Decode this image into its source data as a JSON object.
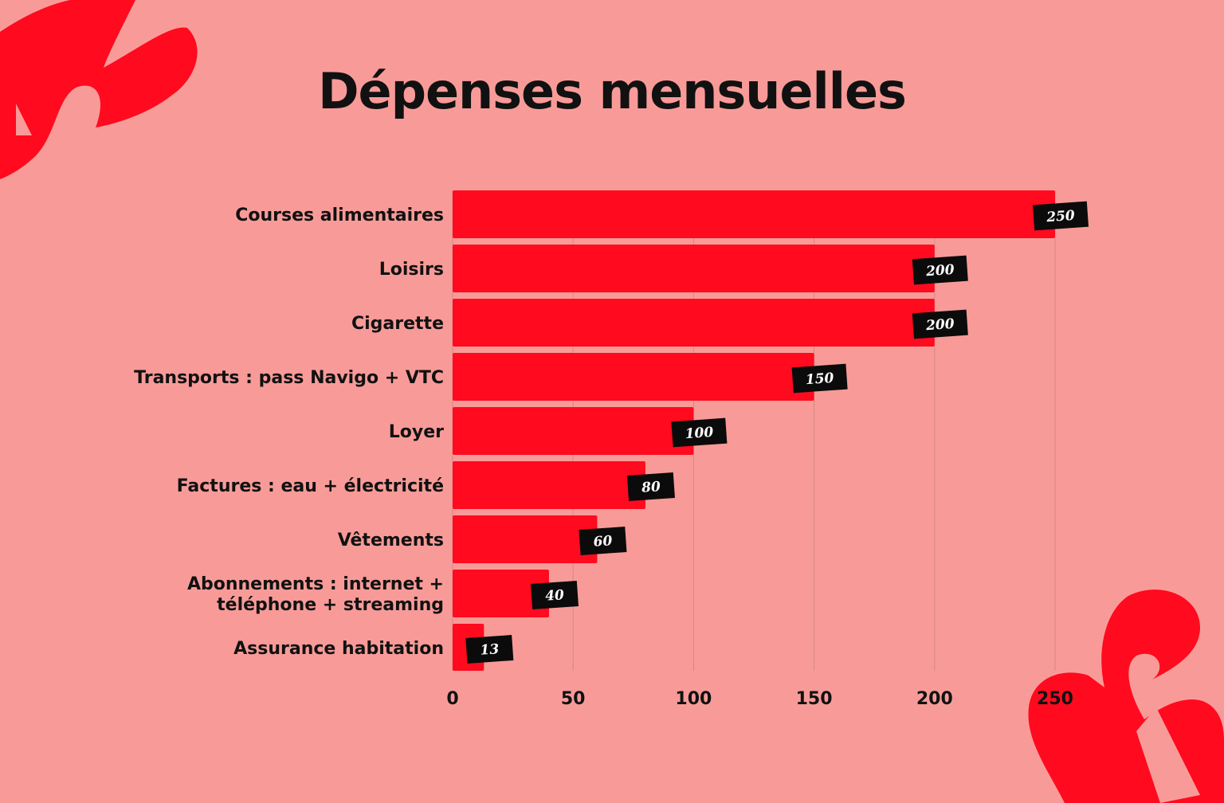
{
  "colors": {
    "background": "#f89b98",
    "bar": "#ff0a1f",
    "label_box": "#0b0b0b",
    "decoration": "#ff0a1f"
  },
  "chart_data": {
    "type": "bar",
    "orientation": "horizontal",
    "title": "Dépenses mensuelles",
    "categories": [
      "Courses alimentaires",
      "Loisirs",
      "Cigarette",
      "Transports : pass Navigo + VTC",
      "Loyer",
      "Factures : eau + électricité",
      "Vêtements",
      "Abonnements : internet + téléphone + streaming",
      "Assurance habitation"
    ],
    "category_lines": [
      [
        "Courses alimentaires"
      ],
      [
        "Loisirs"
      ],
      [
        "Cigarette"
      ],
      [
        "Transports : pass Navigo + VTC"
      ],
      [
        "Loyer"
      ],
      [
        "Factures : eau + électricité"
      ],
      [
        "Vêtements"
      ],
      [
        "Abonnements : internet +",
        "téléphone + streaming"
      ],
      [
        "Assurance habitation"
      ]
    ],
    "values": [
      250,
      200,
      200,
      150,
      100,
      80,
      60,
      40,
      13
    ],
    "xlabel": "",
    "ylabel": "",
    "xlim": [
      0,
      250
    ],
    "xticks": [
      0,
      50,
      100,
      150,
      200,
      250
    ],
    "grid": "vertical",
    "legend": "none"
  }
}
